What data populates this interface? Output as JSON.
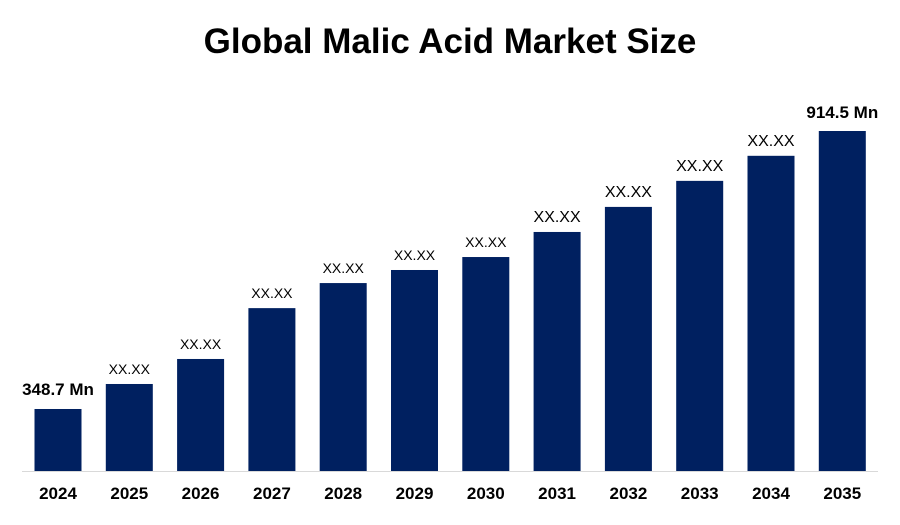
{
  "chart_data": {
    "type": "bar",
    "title": "Global Malic Acid Market Size",
    "categories": [
      "2024",
      "2025",
      "2026",
      "2027",
      "2028",
      "2029",
      "2030",
      "2031",
      "2032",
      "2033",
      "2034",
      "2035"
    ],
    "values": [
      348.7,
      399.6,
      450.5,
      554,
      605,
      631.6,
      658,
      709,
      760,
      813,
      864,
      914.5
    ],
    "data_labels": [
      "348.7 Mn",
      "XX.XX",
      "XX.XX",
      "XX.XX",
      "XX.XX",
      "XX.XX",
      "XX.XX",
      "XX.XX",
      "XX.XX",
      "XX.XX",
      "XX.XX",
      "914.5 Mn"
    ],
    "xlabel": "",
    "ylabel": "",
    "ylim": [
      222.5,
      914.5
    ],
    "grid": false,
    "bar_color": "#002060"
  }
}
